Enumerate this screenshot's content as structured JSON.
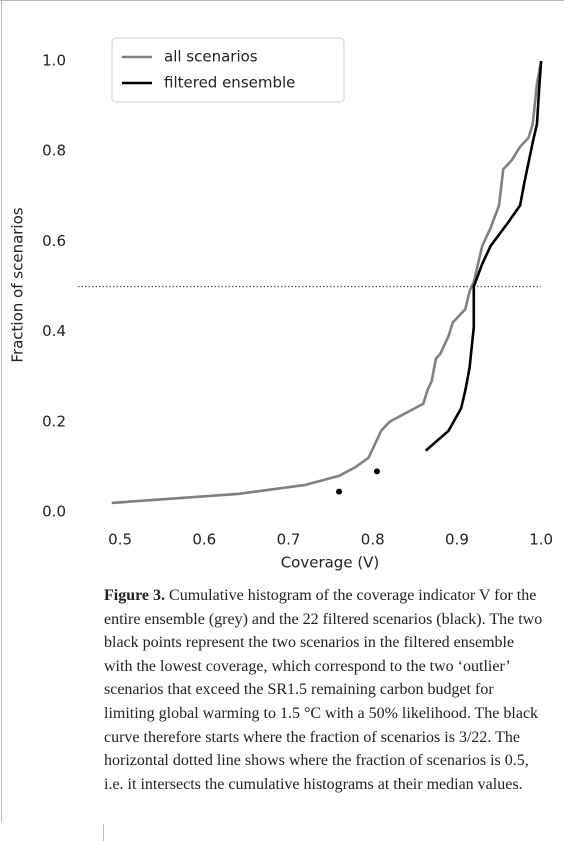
{
  "chart_data": {
    "type": "line",
    "xlabel": "Coverage (V)",
    "ylabel": "Fraction of scenarios",
    "xlim": [
      0.45,
      1.02
    ],
    "ylim": [
      -0.04,
      1.06
    ],
    "xticks": [
      0.5,
      0.6,
      0.7,
      0.8,
      0.9,
      {
        "value": 1.0,
        "label": "1.0"
      }
    ],
    "yticks": [
      {
        "value": 0,
        "label": "0.0"
      },
      0.2,
      0.4,
      0.6,
      0.8,
      {
        "value": 1.0,
        "label": "1.0"
      }
    ],
    "grid": false,
    "legend": "upper left",
    "series": [
      {
        "name": "all scenarios",
        "color": "#808080",
        "x": [
          0.49,
          0.64,
          0.72,
          0.76,
          0.78,
          0.795,
          0.8,
          0.805,
          0.81,
          0.82,
          0.86,
          0.865,
          0.87,
          0.875,
          0.88,
          0.89,
          0.895,
          0.91,
          0.915,
          0.92,
          0.925,
          0.93,
          0.935,
          0.94,
          0.95,
          0.955,
          0.965,
          0.975,
          0.985,
          0.99,
          0.995,
          1.0
        ],
        "values": [
          0.02,
          0.04,
          0.06,
          0.08,
          0.1,
          0.12,
          0.14,
          0.16,
          0.18,
          0.2,
          0.24,
          0.27,
          0.29,
          0.34,
          0.35,
          0.39,
          0.42,
          0.45,
          0.49,
          0.51,
          0.55,
          0.59,
          0.61,
          0.63,
          0.68,
          0.76,
          0.78,
          0.81,
          0.83,
          0.86,
          0.95,
          1.0
        ]
      },
      {
        "name": "filtered ensemble",
        "color": "#000000",
        "x": [
          0.863,
          0.89,
          0.905,
          0.91,
          0.915,
          0.92,
          0.92,
          0.93,
          0.94,
          0.96,
          0.975,
          0.98,
          0.99,
          0.995,
          0.998,
          1.0
        ],
        "values": [
          0.136,
          0.18,
          0.23,
          0.27,
          0.32,
          0.41,
          0.5,
          0.55,
          0.59,
          0.64,
          0.68,
          0.73,
          0.82,
          0.86,
          0.95,
          1.0
        ]
      }
    ],
    "points": {
      "color": "#000000",
      "x": [
        0.76,
        0.805
      ],
      "values": [
        0.045,
        0.09
      ]
    },
    "hline": {
      "y": 0.5,
      "x": [
        0.45,
        1.0
      ],
      "color": "#555555"
    }
  },
  "caption": {
    "label": "Figure 3.",
    "text": "Cumulative histogram of the coverage indicator V for the entire ensemble (grey) and the 22 filtered scenarios (black). The two black points represent the two scenarios in the filtered ensemble with the lowest coverage, which correspond to the two ‘outlier’ scenarios that exceed the SR1.5 remaining carbon budget for limiting global warming to 1.5 °C with a 50% likelihood. The black curve therefore starts where the fraction of scenarios is 3/22. The horizontal dotted line shows where the fraction of scenarios is 0.5, i.e. it intersects the cumulative histograms at their median values."
  }
}
